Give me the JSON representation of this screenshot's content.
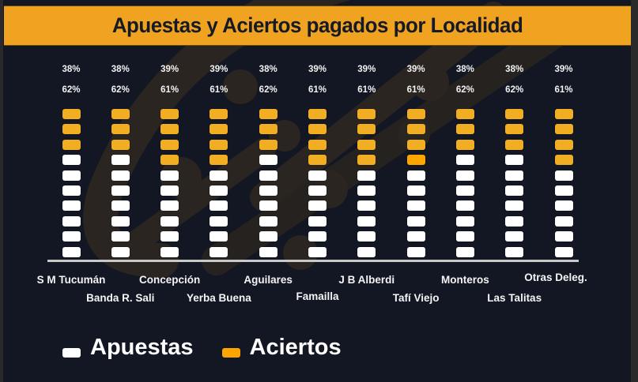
{
  "title": "Apuestas y Aciertos pagados por Localidad",
  "colors": {
    "background": "#121723",
    "banner": "#F0A320",
    "apuestas": "#FFFFFF",
    "aciertos": "#F2AE22",
    "aciertos_highlight": "#FFA500"
  },
  "legend": [
    {
      "label": "Apuestas",
      "color": "#FFFFFF"
    },
    {
      "label": "Aciertos",
      "color": "#FFA500"
    }
  ],
  "chart_data": {
    "type": "bar",
    "subtype": "stacked-pictogram (10 blocks per column)",
    "title": "Apuestas y Aciertos pagados por Localidad",
    "xlabel": "",
    "ylabel": "",
    "categories": [
      "S M Tucumán",
      "Banda R. Sali",
      "Concepción",
      "Yerba Buena",
      "Aguilares",
      "Famailla",
      "J B Alberdi",
      "Tafí Viejo",
      "Monteros",
      "Las Talitas",
      "Otras Deleg."
    ],
    "series": [
      {
        "name": "Aciertos",
        "values": [
          38,
          38,
          39,
          39,
          38,
          39,
          39,
          39,
          38,
          38,
          39
        ],
        "unit": "%",
        "blocks": [
          3,
          3,
          4,
          4,
          3,
          4,
          4,
          4,
          3,
          3,
          4
        ]
      },
      {
        "name": "Apuestas",
        "values": [
          62,
          62,
          61,
          61,
          62,
          61,
          61,
          61,
          62,
          62,
          61
        ],
        "unit": "%",
        "blocks": [
          7,
          7,
          6,
          6,
          7,
          6,
          6,
          6,
          7,
          7,
          6
        ]
      }
    ],
    "blocks_per_column": 10,
    "legend_position": "bottom-left",
    "grid": false
  },
  "columns": [
    {
      "name": "S M Tucumán",
      "top_pct": "38%",
      "bottom_pct": "62%",
      "hits": 3,
      "label_row": 1
    },
    {
      "name": "Banda R. Sali",
      "top_pct": "38%",
      "bottom_pct": "62%",
      "hits": 3,
      "label_row": 2
    },
    {
      "name": "Concepción",
      "top_pct": "39%",
      "bottom_pct": "61%",
      "hits": 4,
      "label_row": 1
    },
    {
      "name": "Yerba Buena",
      "top_pct": "39%",
      "bottom_pct": "61%",
      "hits": 4,
      "label_row": 2
    },
    {
      "name": "Aguilares",
      "top_pct": "38%",
      "bottom_pct": "62%",
      "hits": 3,
      "label_row": 1
    },
    {
      "name": "Famailla",
      "top_pct": "39%",
      "bottom_pct": "61%",
      "hits": 4,
      "label_row": 2
    },
    {
      "name": "J B Alberdi",
      "top_pct": "39%",
      "bottom_pct": "61%",
      "hits": 4,
      "label_row": 1
    },
    {
      "name": "Tafí Viejo",
      "top_pct": "39%",
      "bottom_pct": "61%",
      "hits": 4,
      "label_row": 2,
      "highlight_block": 4
    },
    {
      "name": "Monteros",
      "top_pct": "38%",
      "bottom_pct": "62%",
      "hits": 3,
      "label_row": 1
    },
    {
      "name": "Las Talitas",
      "top_pct": "38%",
      "bottom_pct": "62%",
      "hits": 3,
      "label_row": 2
    },
    {
      "name": "Otras Deleg.",
      "top_pct": "39%",
      "bottom_pct": "61%",
      "hits": 4,
      "label_row": 1
    }
  ]
}
